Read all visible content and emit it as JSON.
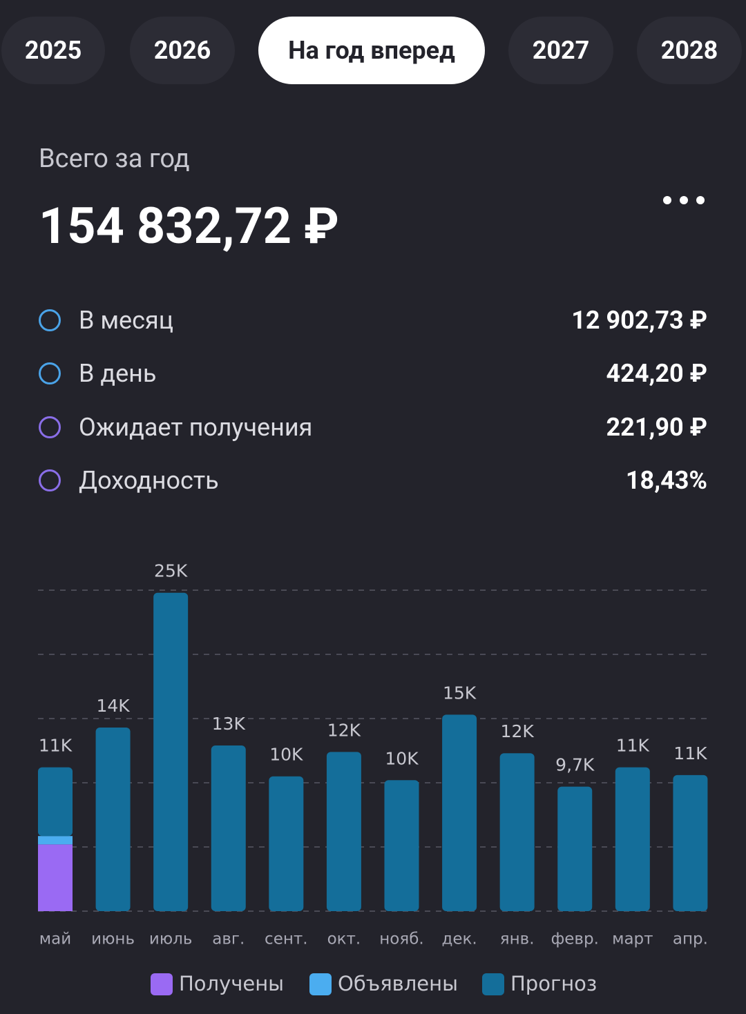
{
  "tabs": [
    "2025",
    "2026",
    "На год вперед",
    "2027",
    "2028"
  ],
  "summary": {
    "label": "Всего за год",
    "total": "154 832,72 ₽"
  },
  "stats": [
    {
      "label": "В месяц",
      "value": "12 902,73 ₽"
    },
    {
      "label": "В день",
      "value": "424,20 ₽"
    },
    {
      "label": "Ожидает получения",
      "value": "221,90 ₽"
    },
    {
      "label": "Доходность",
      "value": "18,43%"
    }
  ],
  "chart_data": {
    "type": "bar",
    "stacked": true,
    "grid": true,
    "categories": [
      "май",
      "июнь",
      "июль",
      "авг.",
      "сент.",
      "окт.",
      "нояб.",
      "дек.",
      "янв.",
      "февр.",
      "март",
      "апр."
    ],
    "series": [
      {
        "name": "Получены",
        "color": "#9a6af3",
        "values": [
          5200,
          0,
          0,
          0,
          0,
          0,
          0,
          0,
          0,
          0,
          0,
          0
        ]
      },
      {
        "name": "Объявлены",
        "color": "#4badf0",
        "values": [
          650,
          0,
          0,
          0,
          0,
          0,
          0,
          0,
          0,
          0,
          0,
          0
        ]
      },
      {
        "name": "Прогноз",
        "color": "#146e9a",
        "values": [
          5350,
          14300,
          24800,
          12900,
          10500,
          12400,
          10200,
          15300,
          12300,
          9700,
          11200,
          10600
        ]
      }
    ],
    "totals": [
      11200,
      14300,
      24800,
      12900,
      10500,
      12400,
      10200,
      15300,
      12300,
      9700,
      11200,
      10600
    ],
    "total_labels": [
      "11K",
      "14K",
      "25K",
      "13K",
      "10K",
      "12K",
      "10K",
      "15K",
      "12K",
      "9,7K",
      "11K",
      "11K"
    ],
    "ylim": [
      0,
      25000
    ],
    "yticks": [
      0,
      5000,
      10000,
      15000,
      20000,
      25000
    ]
  }
}
